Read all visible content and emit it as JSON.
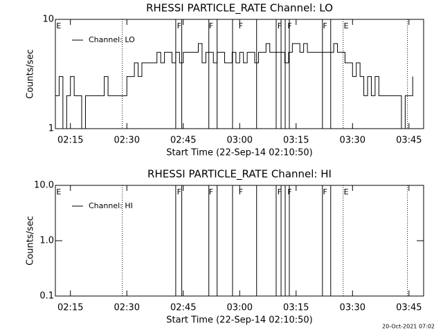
{
  "chart_data": [
    {
      "type": "line",
      "title": "RHESSI PARTICLE_RATE Channel: LO",
      "xlabel": "Start Time (22-Sep-14 02:10:50)",
      "ylabel": "Counts/sec",
      "log_y": true,
      "xlim": [
        131,
        228.9
      ],
      "ylim": [
        1,
        10
      ],
      "xticks": [
        {
          "value": 135,
          "label": "02:15"
        },
        {
          "value": 150,
          "label": "02:30"
        },
        {
          "value": 165,
          "label": "02:45"
        },
        {
          "value": 180,
          "label": "03:00"
        },
        {
          "value": 195,
          "label": "03:15"
        },
        {
          "value": 210,
          "label": "03:30"
        },
        {
          "value": 225,
          "label": "03:45"
        }
      ],
      "yticks": [
        1,
        10
      ],
      "dotted_lines": [
        148.8,
        207.5,
        224.6
      ],
      "solid_lines": [
        163.0,
        164.6,
        171.8,
        174.0,
        178.1,
        184.5,
        189.7,
        191.0,
        192.1,
        193.2,
        202.0,
        204.2
      ],
      "flags": [
        {
          "x": 131.9,
          "label": "E"
        },
        {
          "x": 163.9,
          "label": "F"
        },
        {
          "x": 172.4,
          "label": "F"
        },
        {
          "x": 180.3,
          "label": "F"
        },
        {
          "x": 190.6,
          "label": "F"
        },
        {
          "x": 193.3,
          "label": "F"
        },
        {
          "x": 202.7,
          "label": "F"
        },
        {
          "x": 208.3,
          "label": "E"
        }
      ],
      "x": [
        131,
        132,
        133,
        134,
        135,
        136,
        137,
        138,
        139,
        140,
        141,
        142,
        143,
        144,
        145,
        146,
        147,
        148,
        149,
        150,
        151,
        152,
        153,
        154,
        155,
        156,
        157,
        158,
        159,
        160,
        161,
        162,
        163,
        164,
        165,
        166,
        167,
        168,
        169,
        170,
        171,
        172,
        173,
        174,
        175,
        176,
        177,
        178,
        179,
        180,
        181,
        182,
        183,
        184,
        185,
        186,
        187,
        188,
        189,
        190,
        191,
        192,
        193,
        194,
        195,
        196,
        197,
        198,
        199,
        200,
        201,
        202,
        203,
        204,
        205,
        206,
        207,
        208,
        209,
        210,
        211,
        212,
        213,
        214,
        215,
        216,
        217,
        218,
        219,
        220,
        221,
        222,
        223,
        224,
        225,
        226
      ],
      "series": [
        {
          "name": "Channel: LO",
          "color": "#000000",
          "values": [
            2,
            3,
            1,
            2,
            3,
            2,
            2,
            1,
            2,
            2,
            2,
            2,
            2,
            3,
            2,
            2,
            2,
            2,
            2,
            3,
            3,
            4,
            3,
            4,
            4,
            4,
            4,
            5,
            4,
            5,
            5,
            4,
            5,
            4,
            5,
            5,
            5,
            5,
            6,
            4,
            5,
            5,
            4,
            5,
            5,
            4,
            4,
            5,
            4,
            5,
            4,
            5,
            5,
            4,
            5,
            5,
            6,
            5,
            5,
            5,
            5,
            4,
            5,
            6,
            6,
            5,
            6,
            5,
            5,
            5,
            5,
            5,
            5,
            5,
            6,
            5,
            5,
            4,
            4,
            3,
            4,
            3,
            2,
            3,
            2,
            3,
            2,
            2,
            2,
            2,
            2,
            2,
            1,
            2,
            2,
            3
          ]
        }
      ]
    },
    {
      "type": "line",
      "title": "RHESSI PARTICLE_RATE Channel: HI",
      "xlabel": "Start Time (22-Sep-14 02:10:50)",
      "ylabel": "Counts/sec",
      "log_y": true,
      "xlim": [
        131,
        228.9
      ],
      "ylim": [
        0.1,
        10
      ],
      "xticks": [
        {
          "value": 135,
          "label": "02:15"
        },
        {
          "value": 150,
          "label": "02:30"
        },
        {
          "value": 165,
          "label": "02:45"
        },
        {
          "value": 180,
          "label": "03:00"
        },
        {
          "value": 195,
          "label": "03:15"
        },
        {
          "value": 210,
          "label": "03:30"
        },
        {
          "value": 225,
          "label": "03:45"
        }
      ],
      "yticks": [
        0.1,
        {
          "value": 1,
          "label": "1.0"
        },
        {
          "value": 10,
          "label": "10.0"
        }
      ],
      "dotted_lines": [
        148.8,
        207.5,
        224.6
      ],
      "solid_lines": [
        163.0,
        164.6,
        171.8,
        174.0,
        178.1,
        184.5,
        189.7,
        191.0,
        192.1,
        193.2,
        202.0,
        204.2
      ],
      "flags": [
        {
          "x": 131.9,
          "label": "E"
        },
        {
          "x": 163.9,
          "label": "F"
        },
        {
          "x": 172.4,
          "label": "F"
        },
        {
          "x": 180.3,
          "label": "F"
        },
        {
          "x": 190.6,
          "label": "F"
        },
        {
          "x": 193.3,
          "label": "F"
        },
        {
          "x": 202.7,
          "label": "F"
        },
        {
          "x": 208.3,
          "label": "E"
        }
      ],
      "x": [],
      "series": [
        {
          "name": "Channel: HI",
          "color": "#000000",
          "values": []
        }
      ]
    }
  ],
  "footer": "20-Oct-2021 07:02"
}
